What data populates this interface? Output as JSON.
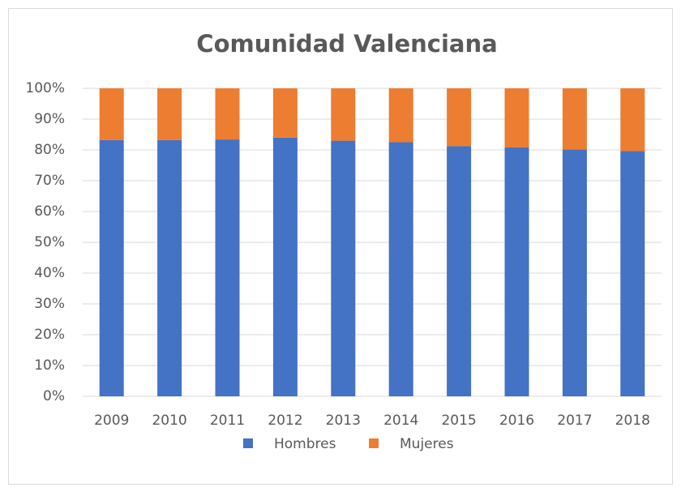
{
  "chart_data": {
    "type": "stacked_bar",
    "title": "Comunidad Valenciana",
    "categories": [
      "2009",
      "2010",
      "2011",
      "2012",
      "2013",
      "2014",
      "2015",
      "2016",
      "2017",
      "2018"
    ],
    "series": [
      {
        "name": "Hombres",
        "color": "#4472c4",
        "values": [
          83.2,
          83.2,
          83.4,
          84.0,
          83.0,
          82.5,
          81.2,
          80.8,
          80.2,
          79.6
        ]
      },
      {
        "name": "Mujeres",
        "color": "#ed7d31",
        "values": [
          16.8,
          16.8,
          16.6,
          16.0,
          17.0,
          17.5,
          18.8,
          19.2,
          19.8,
          20.4
        ]
      }
    ],
    "ylim": [
      0,
      100
    ],
    "yticks": [
      {
        "value": 0,
        "label": "0%"
      },
      {
        "value": 10,
        "label": "10%"
      },
      {
        "value": 20,
        "label": "20%"
      },
      {
        "value": 30,
        "label": "30%"
      },
      {
        "value": 40,
        "label": "40%"
      },
      {
        "value": 50,
        "label": "50%"
      },
      {
        "value": 60,
        "label": "60%"
      },
      {
        "value": 70,
        "label": "70%"
      },
      {
        "value": 80,
        "label": "80%"
      },
      {
        "value": 90,
        "label": "90%"
      },
      {
        "value": 100,
        "label": "100%"
      }
    ],
    "grid": true,
    "legend": "bottom"
  }
}
